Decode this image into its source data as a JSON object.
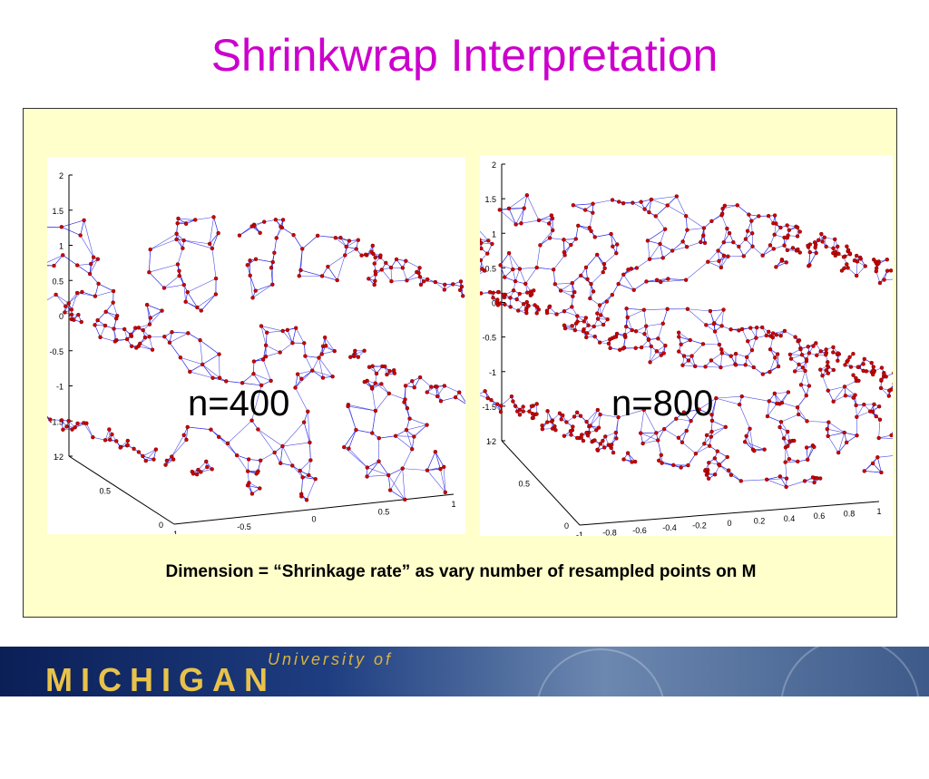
{
  "title": "Shrinkwrap Interpretation",
  "left_plot": {
    "label": "n=400",
    "z_ticks": [
      "2",
      "1.5",
      "1",
      "0.5",
      "0",
      "-0.5",
      "-1",
      "-1.5",
      "-2"
    ],
    "y_ticks": [
      "1",
      "0.5",
      "0"
    ],
    "x_ticks": [
      "-1",
      "-0.5",
      "0",
      "0.5",
      "1"
    ]
  },
  "right_plot": {
    "label": "n=800",
    "z_ticks": [
      "2",
      "1.5",
      "1",
      "0.5",
      "0",
      "-0.5",
      "-1",
      "-1.5",
      "-2"
    ],
    "y_ticks": [
      "1",
      "0.5",
      "0"
    ],
    "x_ticks": [
      "-1",
      "-0.8",
      "-0.6",
      "-0.4",
      "-0.2",
      "0",
      "0.2",
      "0.4",
      "0.6",
      "0.8",
      "1"
    ]
  },
  "caption": "Dimension = “Shrinkage rate”  as vary number of resampled points on M",
  "footer": {
    "university": "University of",
    "name": "MICHIGAN"
  },
  "colors": {
    "title": "#cc00cc",
    "panel": "#ffffcc",
    "edges": "#2020e0",
    "nodes": "#cc0000"
  }
}
